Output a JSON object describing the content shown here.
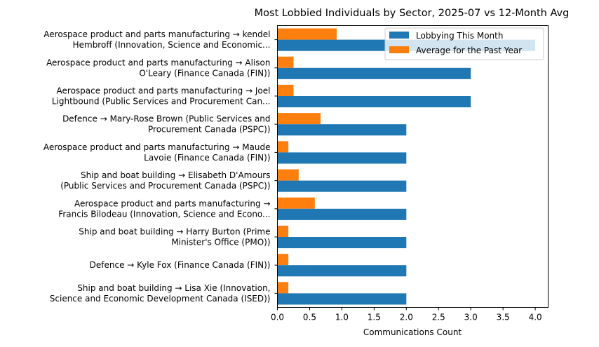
{
  "chart_data": {
    "type": "bar",
    "orientation": "horizontal",
    "title": "Most Lobbied Individuals by Sector, 2025-07 vs 12-Month Avg",
    "xlabel": "Communications Count",
    "ylabel": "",
    "xlim": [
      0,
      4.2
    ],
    "xticks": [
      "0.0",
      "0.5",
      "1.0",
      "1.5",
      "2.0",
      "2.5",
      "3.0",
      "3.5",
      "4.0"
    ],
    "xtick_values": [
      0,
      0.5,
      1.0,
      1.5,
      2.0,
      2.5,
      3.0,
      3.5,
      4.0
    ],
    "grid": false,
    "legend_position": "top-right",
    "categories": [
      [
        "Aerospace product and parts manufacturing → kendel",
        "Hembroff (Innovation, Science and Economic..."
      ],
      [
        "Aerospace product and parts manufacturing → Alison",
        "O'Leary (Finance Canada (FIN))"
      ],
      [
        "Aerospace product and parts manufacturing → Joel",
        "Lightbound (Public Services and Procurement Can..."
      ],
      [
        "Defence → Mary-Rose Brown (Public Services and",
        "Procurement Canada (PSPC))"
      ],
      [
        "Aerospace product and parts manufacturing → Maude",
        "Lavoie (Finance Canada (FIN))"
      ],
      [
        "Ship and boat building → Elisabeth D'Amours",
        "(Public Services and Procurement Canada (PSPC))"
      ],
      [
        "Aerospace product and parts manufacturing →",
        "Francis Bilodeau (Innovation, Science and Econo..."
      ],
      [
        "Ship and boat building → Harry Burton (Prime",
        "Minister's Office (PMO))"
      ],
      [
        "Defence → Kyle Fox (Finance Canada (FIN))"
      ],
      [
        "Ship and boat building → Lisa Xie (Innovation,",
        "Science and Economic Development Canada (ISED))"
      ]
    ],
    "series": [
      {
        "name": "Lobbying This Month",
        "color": "#1f77b4",
        "values": [
          4,
          3,
          3,
          2,
          2,
          2,
          2,
          2,
          2,
          2
        ]
      },
      {
        "name": "Average for the Past Year",
        "color": "#ff7f0e",
        "values": [
          0.92,
          0.25,
          0.25,
          0.67,
          0.17,
          0.33,
          0.58,
          0.17,
          0.17,
          0.17
        ]
      }
    ]
  }
}
